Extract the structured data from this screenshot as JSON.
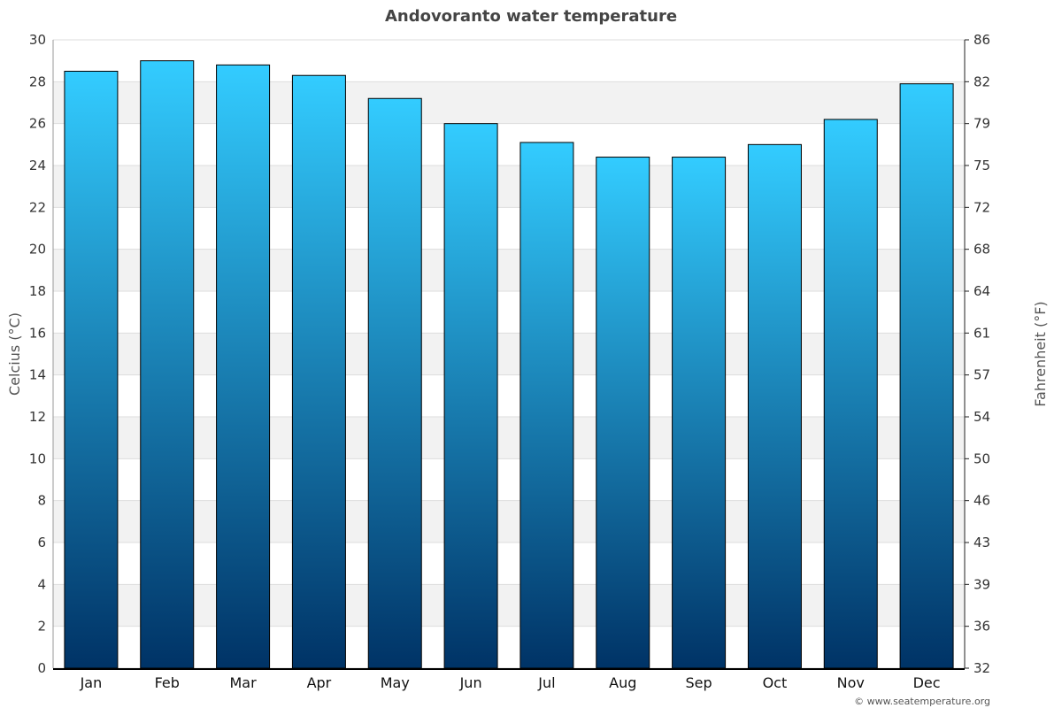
{
  "chart_data": {
    "type": "bar",
    "title": "Andovoranto water temperature",
    "categories": [
      "Jan",
      "Feb",
      "Mar",
      "Apr",
      "May",
      "Jun",
      "Jul",
      "Aug",
      "Sep",
      "Oct",
      "Nov",
      "Dec"
    ],
    "values": [
      28.5,
      29.0,
      28.8,
      28.3,
      27.2,
      26.0,
      25.1,
      24.4,
      24.4,
      25.0,
      26.2,
      27.9
    ],
    "ylabel": "Celcius (°C)",
    "y2label": "Fahrenheit (°F)",
    "ylim": [
      0,
      30
    ],
    "yticks": [
      0,
      2,
      4,
      6,
      8,
      10,
      12,
      14,
      16,
      18,
      20,
      22,
      24,
      26,
      28,
      30
    ],
    "y2ticks": [
      "32",
      "36",
      "39",
      "43",
      "46",
      "50",
      "54",
      "57",
      "61",
      "64",
      "68",
      "72",
      "75",
      "79",
      "82",
      "86"
    ],
    "grid": true,
    "colors": {
      "bar_top": "#33ccff",
      "bar_bottom": "#003366",
      "band": "#f2f2f2",
      "title": "#444444"
    }
  },
  "credit": "© www.seatemperature.org"
}
